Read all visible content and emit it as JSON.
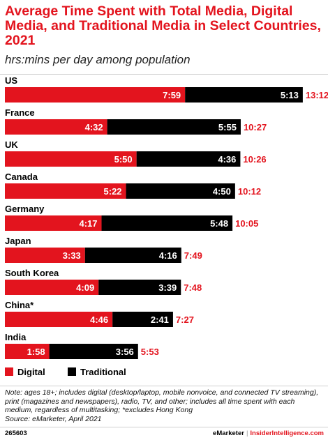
{
  "title": "Average Time Spent with Total Media, Digital Media, and Traditional Media in Select Countries, 2021",
  "subtitle": "hrs:mins per day among population",
  "colors": {
    "digital": "#e3141e",
    "traditional": "#000000",
    "accent": "#e3141e"
  },
  "legend": {
    "digital": "Digital",
    "traditional": "Traditional"
  },
  "note": "Note: ages 18+; includes digital (desktop/laptop, mobile nonvoice, and connected TV streaming), print (magazines and newspapers), radio, TV, and other; includes all time spent with each medium, regardless of multitasking; *excludes Hong Kong",
  "source": "Source: eMarketer, April 2021",
  "footer": {
    "chart_id": "265603",
    "brand1": "eMarketer",
    "separator": "|",
    "brand2": "InsiderIntelligence.com"
  },
  "chart_data": {
    "type": "bar",
    "orientation": "horizontal",
    "stacked": true,
    "categories": [
      "US",
      "France",
      "UK",
      "Canada",
      "Germany",
      "Japan",
      "South Korea",
      "China*",
      "India"
    ],
    "series": [
      {
        "name": "Digital",
        "values": [
          "7:59",
          "4:32",
          "5:50",
          "5:22",
          "4:17",
          "3:33",
          "4:09",
          "4:46",
          "1:58"
        ]
      },
      {
        "name": "Traditional",
        "values": [
          "5:13",
          "5:55",
          "4:36",
          "4:50",
          "5:48",
          "4:16",
          "3:39",
          "2:41",
          "3:56"
        ]
      }
    ],
    "totals": [
      "13:12",
      "10:27",
      "10:26",
      "10:12",
      "10:05",
      "7:49",
      "7:48",
      "7:27",
      "5:53"
    ],
    "unit": "hrs:mins per day",
    "legend_position": "bottom-left"
  }
}
